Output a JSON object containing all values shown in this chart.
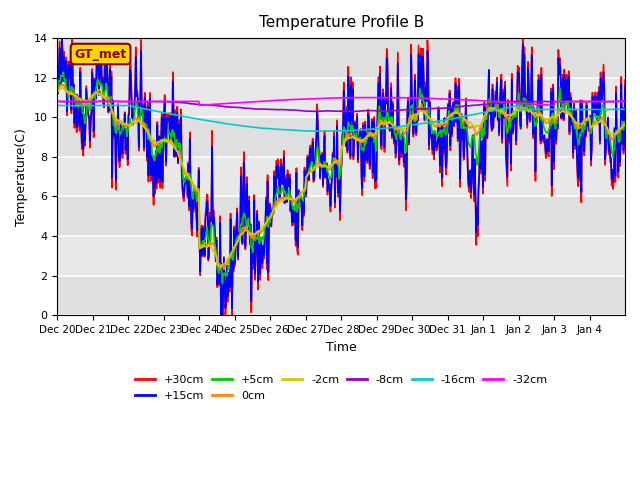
{
  "title": "Temperature Profile B",
  "xlabel": "Time",
  "ylabel": "Temperature(C)",
  "ylim": [
    0,
    14
  ],
  "yticks": [
    0,
    2,
    4,
    6,
    8,
    10,
    12,
    14
  ],
  "xtick_labels": [
    "Dec 20",
    "Dec 21",
    "Dec 22",
    "Dec 23",
    "Dec 24",
    "Dec 25",
    "Dec 26",
    "Dec 27",
    "Dec 28",
    "Dec 29",
    "Dec 30",
    "Dec 31",
    "Jan 1",
    "Jan 2",
    "Jan 3",
    "Jan 4"
  ],
  "series": {
    "+30cm": {
      "color": "#FF0000",
      "lw": 1.2
    },
    "+15cm": {
      "color": "#0000FF",
      "lw": 1.2
    },
    "+5cm": {
      "color": "#00CC00",
      "lw": 1.2
    },
    "0cm": {
      "color": "#FF8800",
      "lw": 1.2
    },
    "-2cm": {
      "color": "#CCCC00",
      "lw": 1.2
    },
    "-8cm": {
      "color": "#9900CC",
      "lw": 1.2
    },
    "-16cm": {
      "color": "#00CCCC",
      "lw": 1.2
    },
    "-32cm": {
      "color": "#FF00FF",
      "lw": 1.2
    }
  },
  "gt_met_box_color": "#FFD700",
  "gt_met_text_color": "#8B0000",
  "background_color": "#FFFFFF",
  "plot_bg_color": "#E8E8E8",
  "n_days": 16,
  "pts_per_day": 48
}
